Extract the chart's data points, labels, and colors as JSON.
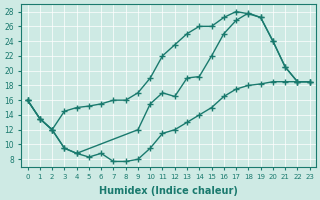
{
  "xlabel": "Humidex (Indice chaleur)",
  "bg_color": "#ceeae4",
  "line_color": "#1a7a6e",
  "xlim": [
    -0.5,
    23.5
  ],
  "ylim": [
    7,
    29
  ],
  "yticks": [
    8,
    10,
    12,
    14,
    16,
    18,
    20,
    22,
    24,
    26,
    28
  ],
  "xticks": [
    0,
    1,
    2,
    3,
    4,
    5,
    6,
    7,
    8,
    9,
    10,
    11,
    12,
    13,
    14,
    15,
    16,
    17,
    18,
    19,
    20,
    21,
    22,
    23
  ],
  "curve_top_x": [
    0,
    1,
    2,
    3,
    4,
    5,
    6,
    7,
    8,
    9,
    10,
    11,
    12,
    13,
    14,
    15,
    16,
    17,
    18,
    19,
    20,
    21,
    22,
    23
  ],
  "curve_top_y": [
    16,
    13.5,
    12,
    14.5,
    15,
    15.2,
    15.5,
    16,
    16,
    17,
    19,
    22,
    23.5,
    25,
    26,
    26,
    27.2,
    28,
    27.7,
    27.2,
    24,
    20.5,
    18.5,
    18.5
  ],
  "curve_mid_x": [
    0,
    1,
    2,
    3,
    4,
    9,
    10,
    11,
    12,
    13,
    14,
    15,
    16,
    17,
    18,
    19,
    20,
    21,
    22,
    23
  ],
  "curve_mid_y": [
    16,
    13.5,
    12,
    9.5,
    8.8,
    12,
    15.5,
    17,
    16.5,
    19,
    19.2,
    22,
    25,
    26.8,
    27.8,
    27.2,
    24,
    20.5,
    18.5,
    18.5
  ],
  "curve_bot_x": [
    0,
    1,
    2,
    3,
    4,
    5,
    6,
    7,
    8,
    9,
    10,
    11,
    12,
    13,
    14,
    15,
    16,
    17,
    18,
    19,
    20,
    21,
    22,
    23
  ],
  "curve_bot_y": [
    16,
    13.5,
    12,
    9.5,
    8.8,
    8.3,
    8.8,
    7.7,
    7.7,
    8.0,
    9.5,
    11.5,
    12,
    13,
    14,
    15,
    16.5,
    17.5,
    18,
    18.2,
    18.5,
    18.5,
    18.5,
    18.5
  ]
}
